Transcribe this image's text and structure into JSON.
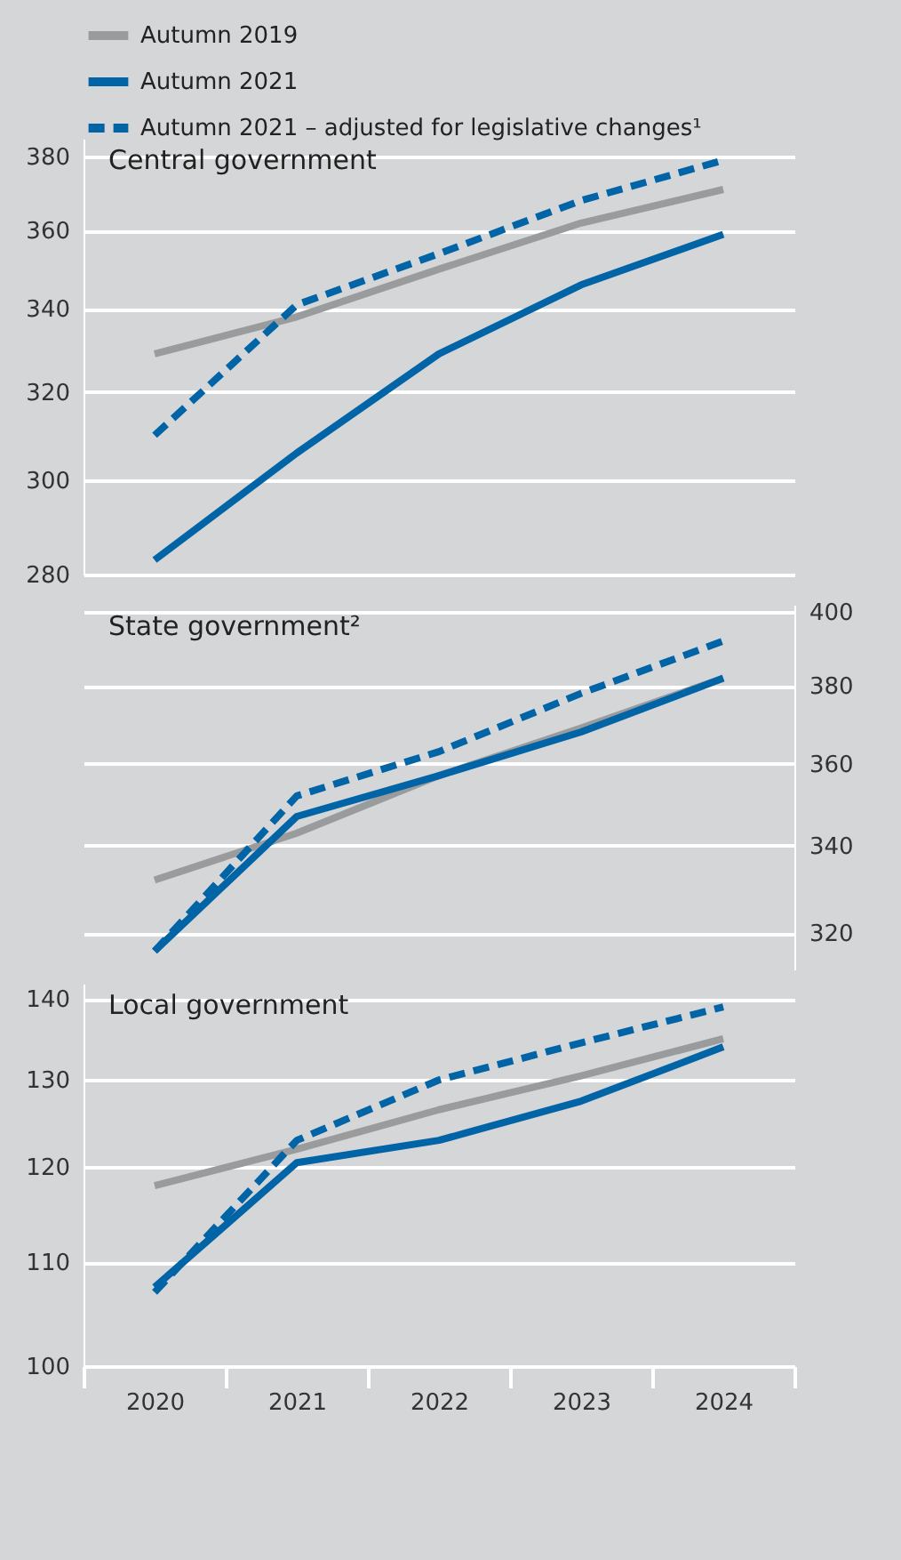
{
  "chart_data": [
    {
      "type": "line",
      "title": "Central government",
      "categories": [
        "2020",
        "2021",
        "2022",
        "2023",
        "2024"
      ],
      "ylim": [
        280,
        385
      ],
      "yticks": [
        280,
        300,
        320,
        340,
        360,
        380
      ],
      "log": true,
      "grid": "y",
      "legend": "top",
      "tick_labels": "y",
      "series": [
        {
          "name": "Autumn 2019",
          "color": "#9a9b9d",
          "values": [
            329,
            338,
            350,
            362,
            371
          ]
        },
        {
          "name": "Autumn 2021",
          "color": "#0064a6",
          "values": [
            283,
            306,
            329,
            346,
            359
          ]
        },
        {
          "name": "Autumn 2021 – adjusted for legislative changes¹",
          "color": "#0064a6",
          "line_style": "dashed",
          "values": [
            310,
            341,
            354,
            368,
            379
          ]
        }
      ]
    },
    {
      "type": "line",
      "title": "State government²",
      "categories": [
        "2020",
        "2021",
        "2022",
        "2023",
        "2024"
      ],
      "y2lim": [
        312,
        402
      ],
      "y2ticks": [
        320,
        340,
        360,
        380,
        400
      ],
      "log": "y2",
      "grid": "y",
      "tick_labels": "y",
      "series": [
        {
          "color": "#9a9b9d",
          "axis": "y2",
          "values": [
            332,
            343,
            357,
            369,
            382
          ]
        },
        {
          "color": "#0064a6",
          "axis": "y2",
          "values": [
            316,
            347,
            357,
            368,
            382
          ]
        },
        {
          "color": "#0064a6",
          "axis": "y2",
          "line_style": "dashed",
          "values": [
            316,
            352,
            363,
            378,
            392
          ]
        }
      ]
    },
    {
      "type": "line",
      "title": "Local government",
      "categories": [
        "2020",
        "2021",
        "2022",
        "2023",
        "2024"
      ],
      "ylim": [
        100,
        142
      ],
      "yticks": [
        100,
        110,
        120,
        130,
        140
      ],
      "log": true,
      "grid": "y",
      "series": [
        {
          "color": "#9a9b9d",
          "values": [
            118,
            122,
            126.5,
            130.5,
            135
          ]
        },
        {
          "color": "#0064a6",
          "values": [
            107.5,
            120.5,
            123,
            127.5,
            134
          ]
        },
        {
          "color": "#0064a6",
          "line_style": "dashed",
          "values": [
            107,
            123,
            130,
            134.5,
            139
          ]
        }
      ]
    }
  ]
}
